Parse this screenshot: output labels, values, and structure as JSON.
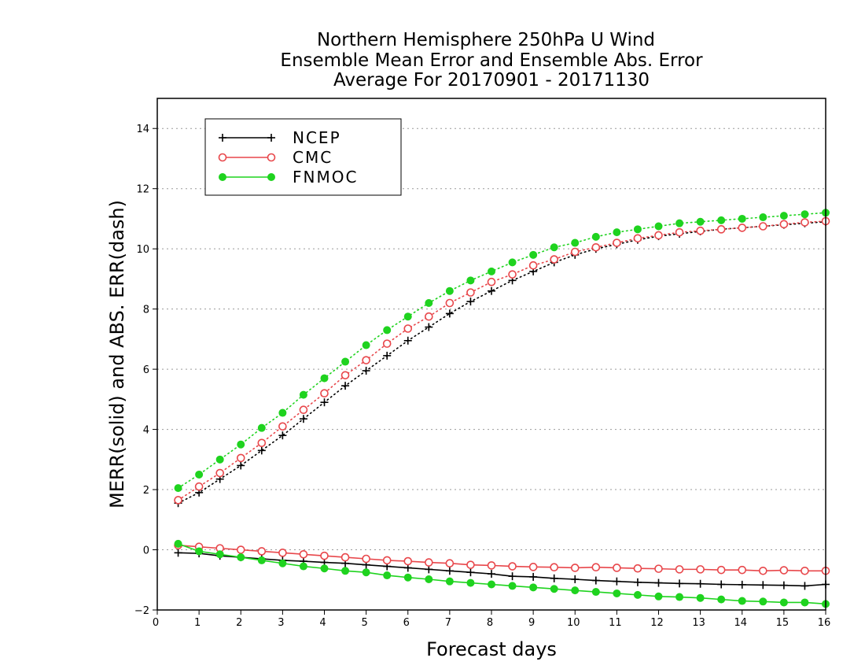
{
  "chart_data": {
    "type": "line",
    "title_lines": [
      "Northern Hemisphere 250hPa U Wind",
      "Ensemble Mean Error and Ensemble Abs. Error",
      "Average For 20170901 - 20171130"
    ],
    "xlabel": "Forecast days",
    "ylabel": "MERR(solid) and ABS. ERR(dash)",
    "xlim": [
      0,
      16
    ],
    "ylim": [
      -2,
      15
    ],
    "xticks": [
      0,
      1,
      2,
      3,
      4,
      5,
      6,
      7,
      8,
      9,
      10,
      11,
      12,
      13,
      14,
      15,
      16
    ],
    "yticks": [
      -2,
      0,
      2,
      4,
      6,
      8,
      10,
      12,
      14
    ],
    "grid": "horizontal dotted",
    "legend_position": "top-left",
    "x": [
      0.5,
      1,
      1.5,
      2,
      2.5,
      3,
      3.5,
      4,
      4.5,
      5,
      5.5,
      6,
      6.5,
      7,
      7.5,
      8,
      8.5,
      9,
      9.5,
      10,
      10.5,
      11,
      11.5,
      12,
      12.5,
      13,
      13.5,
      14,
      14.5,
      15,
      15.5,
      16
    ],
    "series": [
      {
        "name": "NCEP",
        "color": "#000000",
        "marker": "plus",
        "merr": [
          -0.1,
          -0.12,
          -0.2,
          -0.25,
          -0.3,
          -0.35,
          -0.38,
          -0.42,
          -0.45,
          -0.5,
          -0.55,
          -0.6,
          -0.65,
          -0.7,
          -0.75,
          -0.8,
          -0.88,
          -0.9,
          -0.95,
          -0.98,
          -1.02,
          -1.05,
          -1.08,
          -1.1,
          -1.12,
          -1.13,
          -1.15,
          -1.16,
          -1.17,
          -1.18,
          -1.2,
          -1.15
        ],
        "abs_err": [
          1.55,
          1.9,
          2.35,
          2.8,
          3.3,
          3.8,
          4.35,
          4.9,
          5.45,
          5.95,
          6.45,
          6.95,
          7.4,
          7.85,
          8.25,
          8.6,
          8.95,
          9.25,
          9.55,
          9.8,
          10.0,
          10.15,
          10.3,
          10.42,
          10.5,
          10.58,
          10.65,
          10.7,
          10.75,
          10.8,
          10.85,
          10.9
        ]
      },
      {
        "name": "CMC",
        "color": "#e8474b",
        "marker": "open-circle",
        "merr": [
          0.15,
          0.1,
          0.05,
          0.0,
          -0.05,
          -0.1,
          -0.15,
          -0.2,
          -0.25,
          -0.3,
          -0.35,
          -0.38,
          -0.42,
          -0.45,
          -0.5,
          -0.52,
          -0.55,
          -0.57,
          -0.58,
          -0.6,
          -0.58,
          -0.6,
          -0.62,
          -0.63,
          -0.65,
          -0.65,
          -0.67,
          -0.67,
          -0.7,
          -0.68,
          -0.7,
          -0.7
        ],
        "abs_err": [
          1.65,
          2.1,
          2.55,
          3.05,
          3.55,
          4.1,
          4.65,
          5.2,
          5.8,
          6.3,
          6.85,
          7.35,
          7.75,
          8.2,
          8.55,
          8.9,
          9.15,
          9.45,
          9.65,
          9.9,
          10.05,
          10.2,
          10.35,
          10.45,
          10.55,
          10.6,
          10.65,
          10.7,
          10.75,
          10.82,
          10.88,
          10.92
        ]
      },
      {
        "name": "FNMOC",
        "color": "#1fd31f",
        "marker": "filled-circle",
        "merr": [
          0.2,
          -0.05,
          -0.15,
          -0.25,
          -0.35,
          -0.45,
          -0.55,
          -0.62,
          -0.7,
          -0.75,
          -0.85,
          -0.92,
          -0.98,
          -1.05,
          -1.1,
          -1.15,
          -1.2,
          -1.25,
          -1.3,
          -1.35,
          -1.4,
          -1.45,
          -1.5,
          -1.55,
          -1.57,
          -1.6,
          -1.65,
          -1.7,
          -1.72,
          -1.75,
          -1.75,
          -1.8
        ],
        "abs_err": [
          2.05,
          2.5,
          3.0,
          3.5,
          4.05,
          4.55,
          5.15,
          5.7,
          6.25,
          6.8,
          7.3,
          7.75,
          8.2,
          8.6,
          8.95,
          9.25,
          9.55,
          9.8,
          10.05,
          10.2,
          10.4,
          10.55,
          10.65,
          10.75,
          10.85,
          10.9,
          10.95,
          11.0,
          11.05,
          11.1,
          11.15,
          11.2
        ]
      }
    ]
  }
}
